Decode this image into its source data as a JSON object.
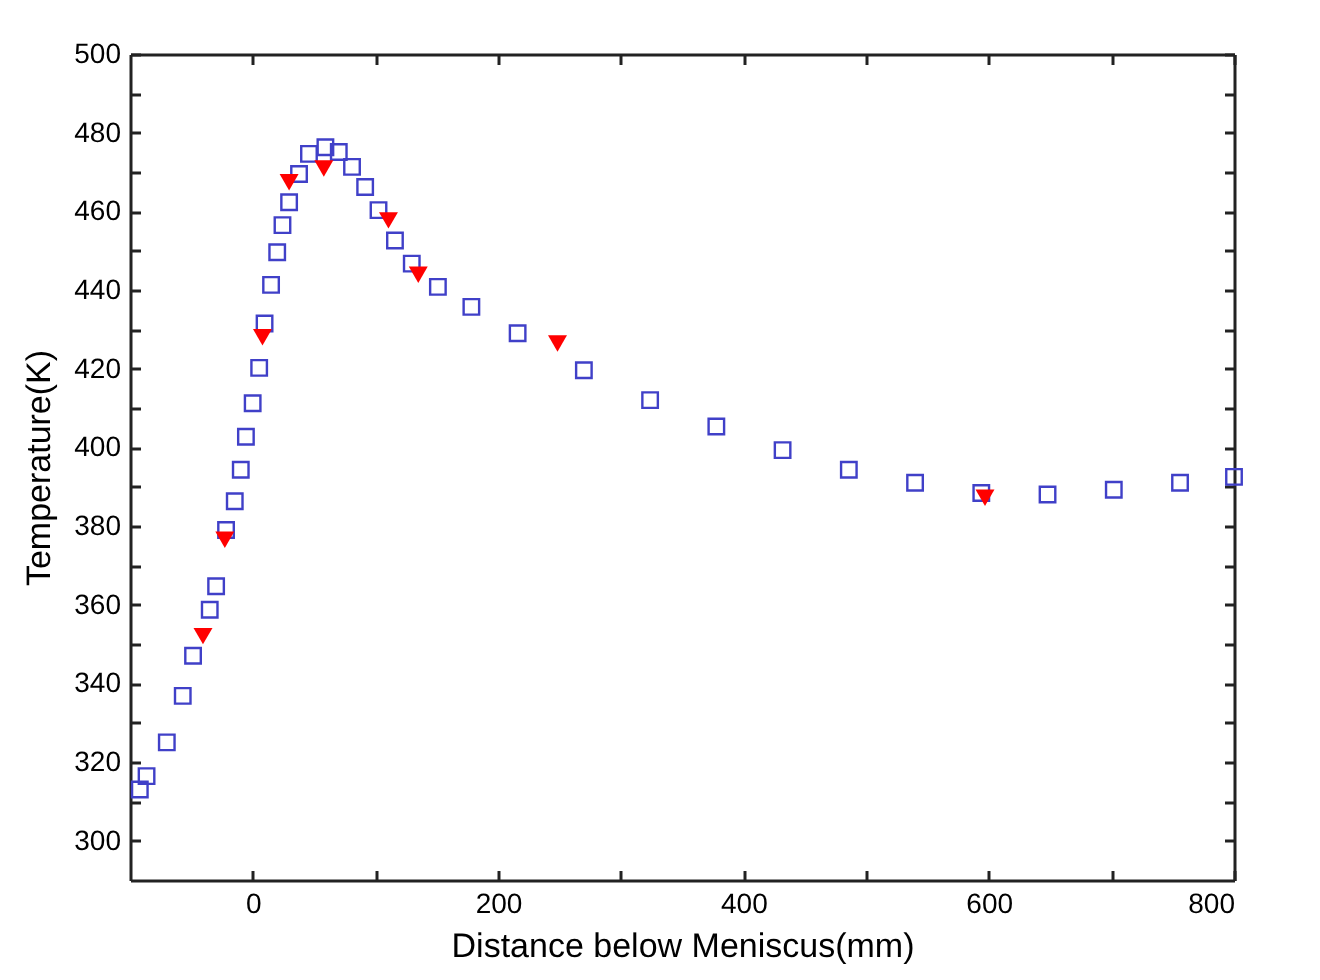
{
  "chart_data": {
    "type": "scatter",
    "xlabel": "Distance below Meniscus(mm)",
    "ylabel": "Temperature(K)",
    "xlim": [
      -100,
      800
    ],
    "ylim": [
      290,
      500
    ],
    "xticks": [
      0,
      {
        "value": 100,
        "label": null
      },
      200,
      {
        "value": 300,
        "label": null
      },
      400,
      {
        "value": 500,
        "label": null
      },
      600,
      {
        "value": 700,
        "label": null
      },
      800
    ],
    "yticks": [
      300,
      {
        "value": 310,
        "label": null
      },
      320,
      {
        "value": 330,
        "label": null
      },
      340,
      {
        "value": 350,
        "label": null
      },
      360,
      {
        "value": 370,
        "label": null
      },
      380,
      {
        "value": 390,
        "label": null
      },
      400,
      {
        "value": 410,
        "label": null
      },
      420,
      {
        "value": 430,
        "label": null
      },
      440,
      {
        "value": 450,
        "label": null
      },
      460,
      {
        "value": 470,
        "label": null
      },
      480,
      {
        "value": 490,
        "label": null
      },
      500
    ],
    "grid": false,
    "series": [
      {
        "color": "#4040c8",
        "marker": "square",
        "x": [
          -92,
          -86.5,
          -70,
          -57,
          -48.6,
          -35,
          -29.8,
          -21.7,
          -14.6,
          -9.7,
          -5.5,
          0,
          5.3,
          9.7,
          15,
          20,
          24.3,
          29.7,
          37.8,
          45.9,
          59.3,
          70.2,
          81,
          91.7,
          102.6,
          116,
          129.7,
          151,
          178.3,
          216,
          270,
          324,
          378,
          432,
          486,
          540,
          594,
          648,
          702,
          756,
          800
        ],
        "values": [
          313,
          316.4,
          325,
          336.8,
          347,
          358.7,
          364.7,
          379,
          386.3,
          394.3,
          402.7,
          411.2,
          420.2,
          431.5,
          441.3,
          449.6,
          456.5,
          462.3,
          469.5,
          474.6,
          476.3,
          475.1,
          471.3,
          466.2,
          460.3,
          452.6,
          446.7,
          440.8,
          435.7,
          429,
          419.6,
          412,
          405.3,
          399.3,
          394.3,
          391,
          388.4,
          388,
          389.2,
          391,
          392.5
        ]
      },
      {
        "color": "#ff0000",
        "marker": "triangle",
        "x": [
          -40.5,
          -22.7,
          8,
          29.7,
          58,
          110.7,
          135,
          248.5,
          597
        ],
        "values": [
          352,
          376.5,
          428,
          467.4,
          470.9,
          457.7,
          443.9,
          426.4,
          387.2
        ]
      }
    ]
  }
}
